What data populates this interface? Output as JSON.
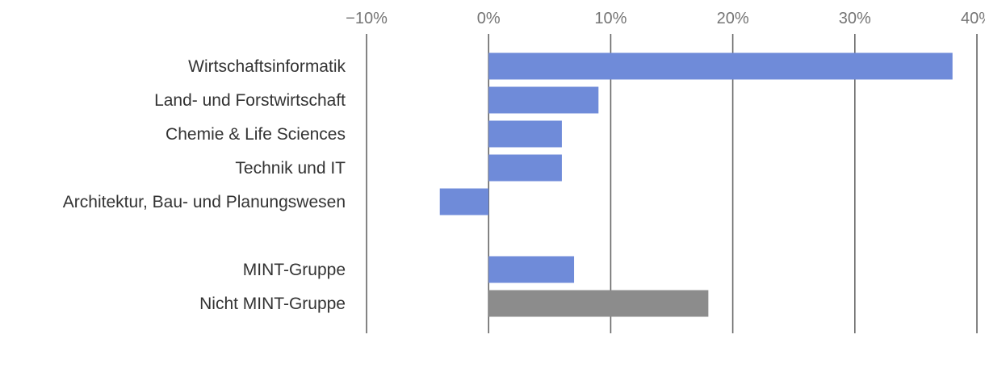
{
  "chart_data": {
    "type": "bar",
    "orientation": "horizontal",
    "title": "",
    "xlabel": "",
    "ylabel": "",
    "xlim": [
      -10,
      40
    ],
    "grid": true,
    "ticks": [
      {
        "value": -10,
        "label": "−10%"
      },
      {
        "value": 0,
        "label": "0%"
      },
      {
        "value": 10,
        "label": "10%"
      },
      {
        "value": 20,
        "label": "20%"
      },
      {
        "value": 30,
        "label": "30%"
      },
      {
        "value": 40,
        "label": "40%"
      }
    ],
    "bars": [
      {
        "category": "Wirtschaftsinformatik",
        "value": 38,
        "color": "#6f8bd9"
      },
      {
        "category": "Land- und Forstwirtschaft",
        "value": 9,
        "color": "#6f8bd9"
      },
      {
        "category": "Chemie & Life Sciences",
        "value": 6,
        "color": "#6f8bd9"
      },
      {
        "category": "Technik und IT",
        "value": 6,
        "color": "#6f8bd9"
      },
      {
        "category": "Architektur, Bau- und Planungswesen",
        "value": -4,
        "color": "#6f8bd9"
      },
      {
        "category": "",
        "value": null,
        "color": ""
      },
      {
        "category": "MINT-Gruppe",
        "value": 7,
        "color": "#6f8bd9"
      },
      {
        "category": "Nicht MINT-Gruppe",
        "value": 18,
        "color": "#8c8c8c"
      }
    ]
  }
}
